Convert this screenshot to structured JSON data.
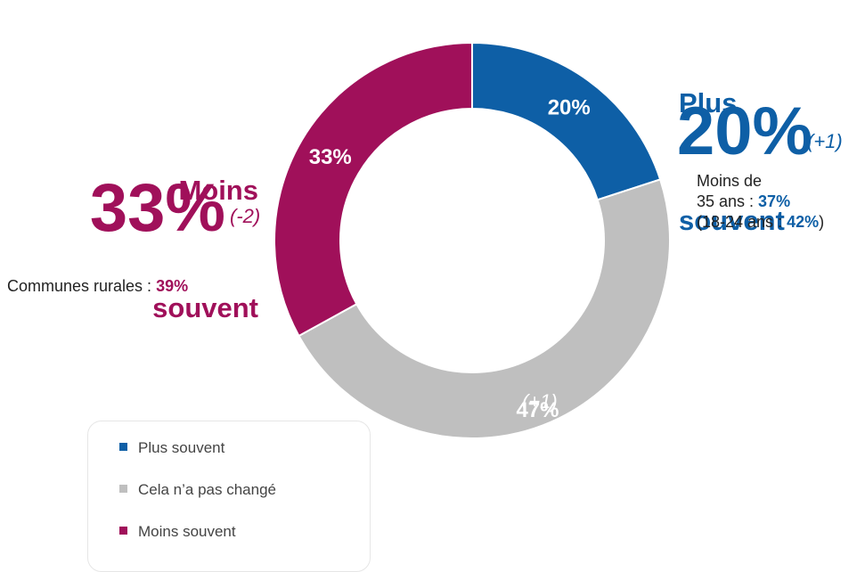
{
  "chart_data": {
    "type": "donut",
    "categories": [
      "Plus souvent",
      "Cela n’a pas changé",
      "Moins souvent"
    ],
    "values": [
      20,
      47,
      33
    ],
    "value_labels": [
      "20%",
      "47%",
      "33%"
    ],
    "colors": [
      "#0e5fa6",
      "#bfbfbf",
      "#a0105a"
    ],
    "legend": "bottom-left",
    "annotations": {
      "right": {
        "title": [
          "Plus",
          "souvent"
        ],
        "value": "20%",
        "change": "(+1)",
        "note": [
          [
            {
              "text": "Moins de"
            }
          ],
          [
            {
              "text": "35 ans : "
            },
            {
              "text": "37%",
              "strong": true
            }
          ],
          [
            {
              "text": "(18-24 ans : "
            },
            {
              "text": "42%",
              "strong": true
            },
            {
              "text": ")"
            }
          ]
        ]
      },
      "left": {
        "title": [
          "Moins",
          "souvent"
        ],
        "value": "33%",
        "change": "(-2)",
        "note": [
          [
            {
              "text": "Communes rurales : "
            },
            {
              "text": "39%",
              "strong": true
            }
          ]
        ]
      },
      "middle": {
        "change": "(+1)"
      }
    }
  }
}
